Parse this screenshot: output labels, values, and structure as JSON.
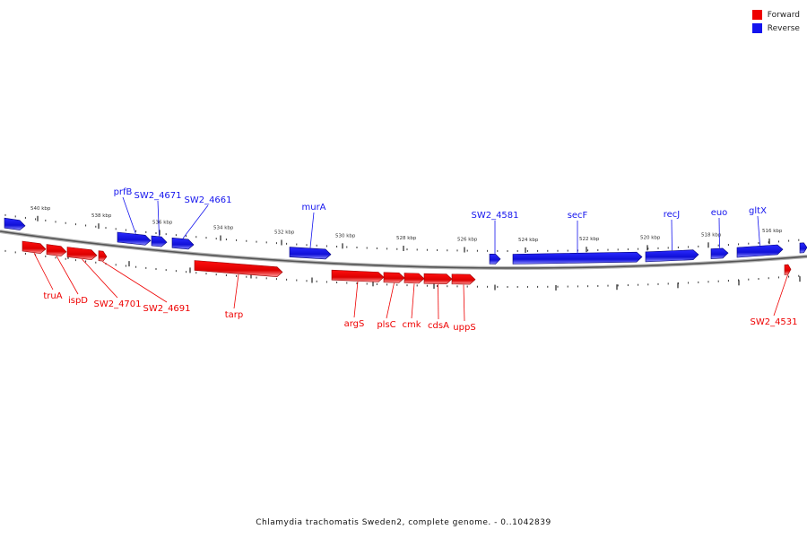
{
  "caption": "Chlamydia trachomatis Sweden2, complete genome. - 0..1042839",
  "legend": {
    "forward": {
      "label": "Forward",
      "color": "#ee0000"
    },
    "reverse": {
      "label": "Reverse",
      "color": "#1414ee"
    }
  },
  "axis": {
    "ticks": [
      "540 kbp",
      "538 kbp",
      "536 kbp",
      "534 kbp",
      "532 kbp",
      "530 kbp",
      "528 kbp",
      "526 kbp",
      "524 kbp",
      "522 kbp",
      "520 kbp",
      "518 kbp",
      "516 kbp"
    ]
  },
  "genes": {
    "reverse": [
      {
        "label": "",
        "x1": 5,
        "x2": 28
      },
      {
        "label": "prfB",
        "x1": 131,
        "x2": 168
      },
      {
        "label": "SW2_4671",
        "x1": 169,
        "x2": 186
      },
      {
        "label": "SW2_4661",
        "x1": 192,
        "x2": 216
      },
      {
        "label": "murA",
        "x1": 323,
        "x2": 369
      },
      {
        "label": "SW2_4581",
        "x1": 546,
        "x2": 558
      },
      {
        "label": "secF",
        "x1": 572,
        "x2": 716
      },
      {
        "label": "recJ",
        "x1": 720,
        "x2": 779
      },
      {
        "label": "euo",
        "x1": 793,
        "x2": 812
      },
      {
        "label": "gltX",
        "x1": 822,
        "x2": 873
      },
      {
        "label": "",
        "x1": 892,
        "x2": 900
      }
    ],
    "forward": [
      {
        "label": "truA",
        "x1": 25,
        "x2": 51
      },
      {
        "label": "ispD",
        "x1": 52,
        "x2": 74
      },
      {
        "label": "SW2_4701",
        "x1": 75,
        "x2": 108
      },
      {
        "label": "SW2_4691",
        "x1": 110,
        "x2": 119
      },
      {
        "label": "tarp",
        "x1": 217,
        "x2": 315
      },
      {
        "label": "argS",
        "x1": 370,
        "x2": 428
      },
      {
        "label": "plsC",
        "x1": 428,
        "x2": 451
      },
      {
        "label": "cmk",
        "x1": 451,
        "x2": 473
      },
      {
        "label": "cdsA",
        "x1": 473,
        "x2": 504
      },
      {
        "label": "uppS",
        "x1": 504,
        "x2": 530
      },
      {
        "label": "SW2_4531",
        "x1": 875,
        "x2": 882
      }
    ]
  }
}
